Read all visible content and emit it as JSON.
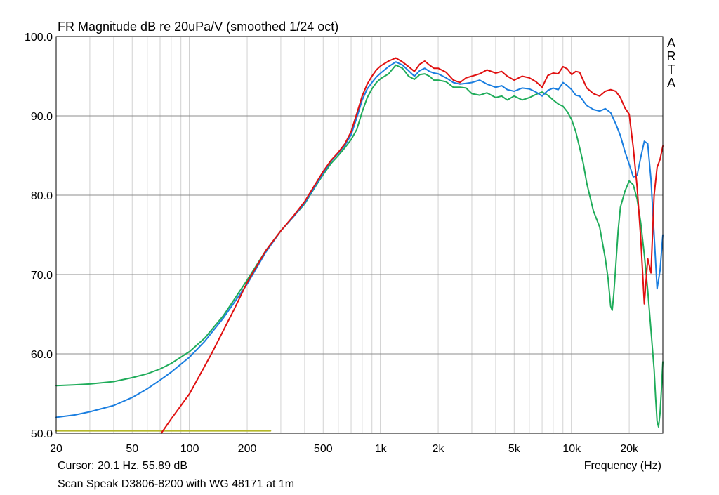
{
  "chart_data": {
    "type": "line",
    "title": "FR Magnitude dB re 20uPa/V (smoothed 1/24 oct)",
    "xlabel": "Frequency (Hz)",
    "ylabel": "",
    "xscale": "log",
    "xlim": [
      20,
      30000
    ],
    "ylim": [
      50,
      100
    ],
    "grid": true,
    "y_ticks": [
      50,
      60,
      70,
      80,
      90,
      100
    ],
    "y_tick_labels": [
      "50.0",
      "60.0",
      "70.0",
      "80.0",
      "90.0",
      "100.0"
    ],
    "x_ticks": [
      20,
      50,
      100,
      200,
      500,
      1000,
      2000,
      5000,
      10000,
      20000
    ],
    "x_tick_labels": [
      "20",
      "50",
      "100",
      "200",
      "500",
      "1k",
      "2k",
      "5k",
      "10k",
      "20k"
    ],
    "series": [
      {
        "name": "red",
        "color": "#e01010",
        "x": [
          71,
          80,
          100,
          130,
          170,
          200,
          250,
          300,
          350,
          400,
          450,
          500,
          550,
          600,
          650,
          700,
          750,
          800,
          850,
          900,
          950,
          1000,
          1100,
          1200,
          1300,
          1400,
          1500,
          1600,
          1700,
          1800,
          1900,
          2000,
          2200,
          2400,
          2600,
          2800,
          3000,
          3300,
          3600,
          4000,
          4300,
          4600,
          5000,
          5500,
          6000,
          6500,
          7000,
          7500,
          8000,
          8500,
          9000,
          9500,
          10000,
          10500,
          11000,
          12000,
          13000,
          14000,
          15000,
          16000,
          17000,
          18000,
          19000,
          20000,
          21000,
          22000,
          23000,
          24000,
          25000,
          26000,
          27000,
          28000,
          29000,
          30000
        ],
        "y": [
          50.0,
          51.8,
          55.0,
          60.0,
          65.5,
          69.0,
          73.0,
          75.5,
          77.4,
          79.2,
          81.2,
          83.0,
          84.4,
          85.4,
          86.5,
          88.0,
          90.3,
          92.5,
          94.0,
          95.0,
          95.8,
          96.3,
          96.9,
          97.3,
          96.8,
          96.2,
          95.6,
          96.5,
          96.9,
          96.4,
          96.0,
          96.0,
          95.5,
          94.5,
          94.2,
          94.8,
          95.0,
          95.3,
          95.8,
          95.4,
          95.6,
          95.0,
          94.5,
          95.0,
          94.8,
          94.3,
          93.6,
          95.1,
          95.4,
          95.3,
          96.2,
          95.9,
          95.2,
          95.6,
          95.5,
          93.5,
          92.8,
          92.5,
          93.1,
          93.3,
          93.1,
          92.3,
          91.0,
          90.2,
          86.0,
          81.0,
          74.5,
          66.3,
          72.0,
          70.2,
          80.0,
          83.5,
          84.5,
          86.2
        ]
      },
      {
        "name": "blue",
        "color": "#1a7ee0",
        "x": [
          20,
          25,
          30,
          40,
          50,
          60,
          70,
          80,
          100,
          120,
          150,
          200,
          250,
          300,
          350,
          400,
          450,
          500,
          550,
          600,
          650,
          700,
          750,
          800,
          850,
          900,
          950,
          1000,
          1100,
          1200,
          1300,
          1400,
          1500,
          1600,
          1700,
          1800,
          1900,
          2000,
          2200,
          2400,
          2600,
          2800,
          3000,
          3300,
          3600,
          4000,
          4300,
          4600,
          5000,
          5500,
          6000,
          6500,
          7000,
          7500,
          8000,
          8500,
          9000,
          9500,
          10000,
          10500,
          11000,
          12000,
          13000,
          14000,
          15000,
          16000,
          17000,
          18000,
          19000,
          20000,
          21000,
          22000,
          23000,
          24000,
          25000,
          26000,
          27000,
          28000,
          29000,
          30000
        ],
        "y": [
          52.0,
          52.3,
          52.7,
          53.5,
          54.5,
          55.6,
          56.7,
          57.7,
          59.6,
          61.6,
          64.5,
          68.8,
          72.8,
          75.5,
          77.3,
          79.0,
          81.0,
          82.8,
          84.3,
          85.3,
          86.3,
          87.6,
          89.8,
          92.0,
          93.4,
          94.2,
          94.9,
          95.4,
          96.2,
          96.8,
          96.4,
          95.7,
          95.0,
          95.7,
          96.0,
          95.6,
          95.4,
          95.3,
          94.8,
          94.2,
          94.0,
          94.1,
          94.2,
          94.5,
          94.0,
          93.6,
          93.8,
          93.3,
          93.1,
          93.5,
          93.4,
          93.0,
          92.5,
          93.2,
          93.5,
          93.3,
          94.2,
          93.8,
          93.3,
          92.6,
          92.5,
          91.3,
          90.8,
          90.6,
          90.9,
          90.4,
          89.0,
          87.5,
          85.5,
          83.9,
          82.3,
          82.5,
          84.8,
          86.8,
          86.5,
          82.0,
          75.0,
          68.2,
          70.5,
          75.0
        ]
      },
      {
        "name": "green",
        "color": "#1fac5a",
        "x": [
          20,
          25,
          30,
          40,
          50,
          60,
          70,
          80,
          100,
          120,
          150,
          200,
          250,
          300,
          350,
          400,
          450,
          500,
          550,
          600,
          650,
          700,
          750,
          800,
          850,
          900,
          950,
          1000,
          1100,
          1200,
          1300,
          1400,
          1500,
          1600,
          1700,
          1800,
          1900,
          2000,
          2200,
          2400,
          2600,
          2800,
          3000,
          3300,
          3600,
          4000,
          4300,
          4600,
          5000,
          5500,
          6000,
          6500,
          7000,
          7500,
          8000,
          8500,
          9000,
          9500,
          10000,
          10500,
          11000,
          11500,
          12000,
          13000,
          14000,
          15000,
          15500,
          16000,
          16300,
          16600,
          17000,
          17500,
          18000,
          19000,
          20000,
          21000,
          22000,
          23000,
          24000,
          25000,
          26000,
          27000,
          27500,
          28000,
          28500,
          29000,
          29500,
          30000
        ],
        "y": [
          56.0,
          56.1,
          56.2,
          56.5,
          57.0,
          57.5,
          58.1,
          58.8,
          60.3,
          62.0,
          64.8,
          69.3,
          73.0,
          75.5,
          77.3,
          78.9,
          80.9,
          82.6,
          84.0,
          85.0,
          86.0,
          87.0,
          88.3,
          90.5,
          92.3,
          93.4,
          94.2,
          94.7,
          95.3,
          96.4,
          96.0,
          95.0,
          94.6,
          95.2,
          95.3,
          95.0,
          94.5,
          94.5,
          94.3,
          93.6,
          93.6,
          93.5,
          92.8,
          92.6,
          92.9,
          92.3,
          92.5,
          92.0,
          92.5,
          92.0,
          92.3,
          92.7,
          93.0,
          92.6,
          92.0,
          91.5,
          91.2,
          90.5,
          89.5,
          88.0,
          86.0,
          84.0,
          81.5,
          78.0,
          76.0,
          72.0,
          69.5,
          66.0,
          65.5,
          67.5,
          71.0,
          75.5,
          78.5,
          80.5,
          81.8,
          81.3,
          79.5,
          76.5,
          72.5,
          68.0,
          63.0,
          58.0,
          54.5,
          51.5,
          50.8,
          52.5,
          55.5,
          59.0
        ]
      },
      {
        "name": "yellow",
        "color": "#b5b82a",
        "x": [
          20,
          265
        ],
        "y": [
          50.3,
          50.3
        ]
      }
    ]
  },
  "logo": "ARTA",
  "cursor_readout": "Cursor: 20.1 Hz, 55.89 dB",
  "measurement_label": "Scan Speak D3806-8200 with WG 48171 at 1m"
}
